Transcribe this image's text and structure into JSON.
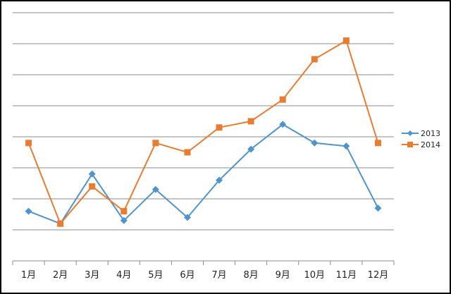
{
  "chart_data": {
    "type": "line",
    "categories": [
      "1月",
      "2月",
      "3月",
      "4月",
      "5月",
      "6月",
      "7月",
      "8月",
      "9月",
      "10月",
      "11月",
      "12月"
    ],
    "series": [
      {
        "name": "2013",
        "color": "#4f94cd",
        "marker": "diamond",
        "values": [
          1.6,
          1.2,
          2.8,
          1.3,
          2.3,
          1.4,
          2.6,
          3.6,
          4.4,
          3.8,
          3.7,
          1.7
        ]
      },
      {
        "name": "2014",
        "color": "#e97c30",
        "marker": "square",
        "values": [
          3.8,
          1.2,
          2.4,
          1.6,
          3.8,
          3.5,
          4.3,
          4.5,
          5.2,
          6.5,
          7.1,
          3.8
        ]
      }
    ],
    "ylim": [
      0,
      8
    ],
    "y_gridlines": 8,
    "y_tick_labels_shown": false,
    "grid": true,
    "legend": "right"
  }
}
